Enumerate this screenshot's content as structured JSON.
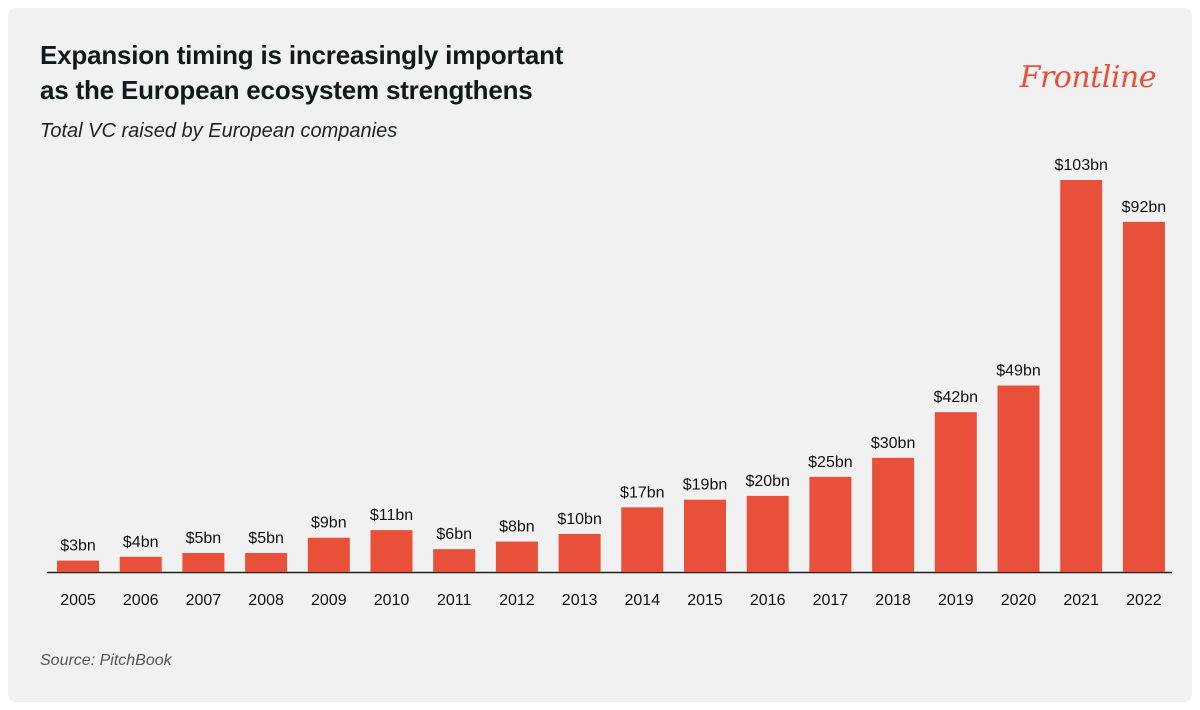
{
  "header": {
    "title_line1": "Expansion timing is increasingly important",
    "title_line2": "as the European ecosystem strengthens",
    "subtitle": "Total VC raised by European companies"
  },
  "brand": {
    "logo_text": "Frontline",
    "color": "#e8503a"
  },
  "footer": {
    "source": "Source: PitchBook"
  },
  "chart_data": {
    "type": "bar",
    "title": "Expansion timing is increasingly important as the European ecosystem strengthens",
    "subtitle": "Total VC raised by European companies",
    "categories": [
      "2005",
      "2006",
      "2007",
      "2008",
      "2009",
      "2010",
      "2011",
      "2012",
      "2013",
      "2014",
      "2015",
      "2016",
      "2017",
      "2018",
      "2019",
      "2020",
      "2021",
      "2022"
    ],
    "values": [
      3,
      4,
      5,
      5,
      9,
      11,
      6,
      8,
      10,
      17,
      19,
      20,
      25,
      30,
      42,
      49,
      103,
      92
    ],
    "data_labels": [
      "$3bn",
      "$4bn",
      "$5bn",
      "$5bn",
      "$9bn",
      "$11bn",
      "$6bn",
      "$8bn",
      "$10bn",
      "$17bn",
      "$19bn",
      "$20bn",
      "$25bn",
      "$30bn",
      "$42bn",
      "$49bn",
      "$103bn",
      "$92bn"
    ],
    "units": "$bn",
    "ylim": [
      0,
      103
    ],
    "grid": false,
    "bar_color": "#e8503a"
  }
}
